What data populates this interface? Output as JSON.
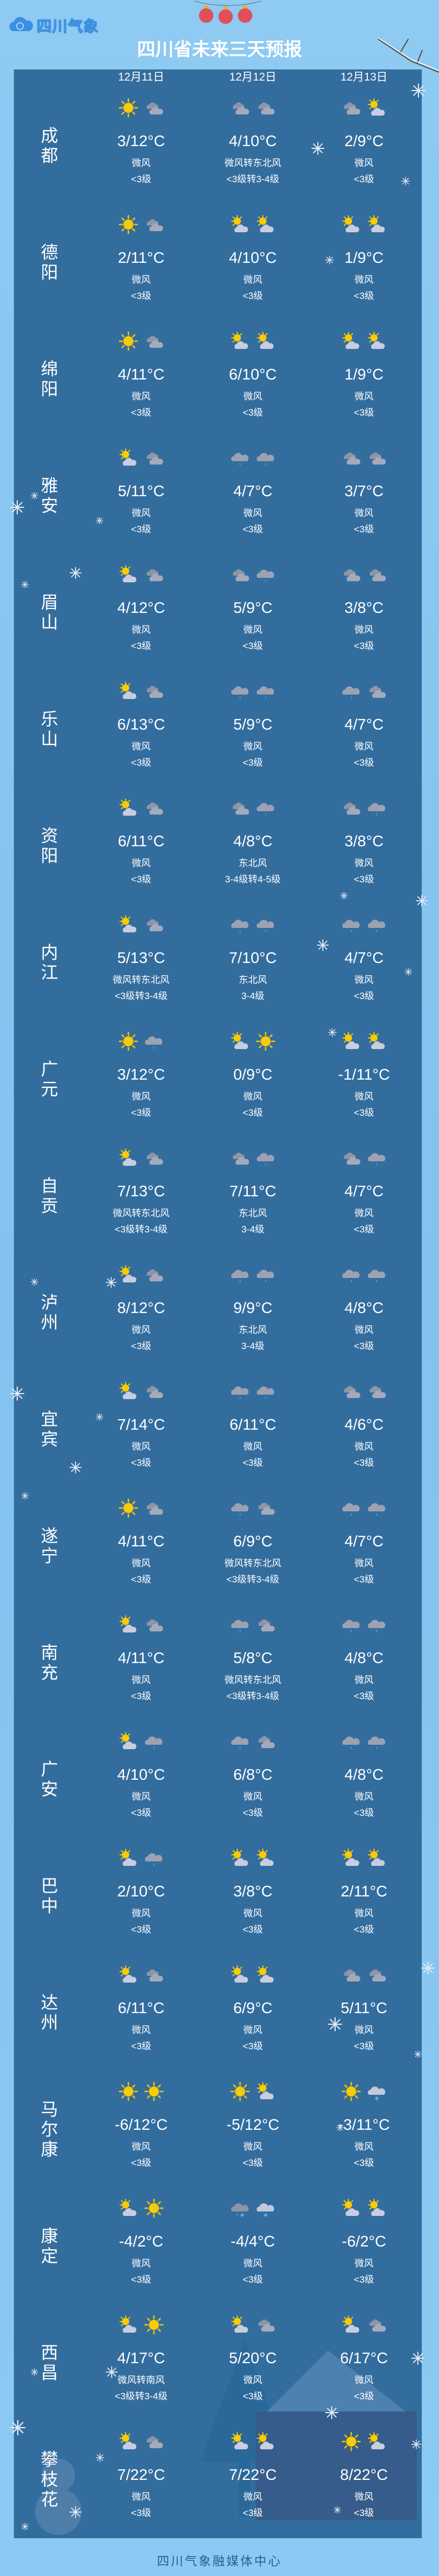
{
  "header": {
    "logo_text": "四川气象",
    "title": "四川省未来三天预报"
  },
  "dates": [
    "12月11日",
    "12月12日",
    "12月13日"
  ],
  "colors": {
    "background": "#86c3ee",
    "panel": "#336d9e",
    "text": "#ffffff",
    "footer": "#2b5f92",
    "sun": "#f5c400",
    "cloud": "#9da3b3",
    "rain_drop": "#3aa8f0"
  },
  "cities": [
    {
      "name": "成都",
      "days": [
        {
          "icons": [
            "sunny",
            "cloudy"
          ],
          "temp": "3/12°C",
          "wind": "微风",
          "level": "<3级"
        },
        {
          "icons": [
            "cloudy",
            "cloudy"
          ],
          "temp": "4/10°C",
          "wind": "微风转东北风",
          "level": "<3级转3-4级"
        },
        {
          "icons": [
            "cloudy",
            "partly-cloudy"
          ],
          "temp": "2/9°C",
          "wind": "微风",
          "level": "<3级"
        }
      ]
    },
    {
      "name": "德阳",
      "days": [
        {
          "icons": [
            "sunny",
            "cloudy"
          ],
          "temp": "2/11°C",
          "wind": "微风",
          "level": "<3级"
        },
        {
          "icons": [
            "partly-cloudy",
            "partly-cloudy"
          ],
          "temp": "4/10°C",
          "wind": "微风",
          "level": "<3级"
        },
        {
          "icons": [
            "partly-cloudy",
            "partly-cloudy"
          ],
          "temp": "1/9°C",
          "wind": "微风",
          "level": "<3级"
        }
      ]
    },
    {
      "name": "绵阳",
      "days": [
        {
          "icons": [
            "sunny",
            "cloudy"
          ],
          "temp": "4/11°C",
          "wind": "微风",
          "level": "<3级"
        },
        {
          "icons": [
            "partly-cloudy",
            "partly-cloudy"
          ],
          "temp": "6/10°C",
          "wind": "微风",
          "level": "<3级"
        },
        {
          "icons": [
            "partly-cloudy",
            "partly-cloudy"
          ],
          "temp": "1/9°C",
          "wind": "微风",
          "level": "<3级"
        }
      ]
    },
    {
      "name": "雅安",
      "days": [
        {
          "icons": [
            "partly-cloudy",
            "cloudy"
          ],
          "temp": "5/11°C",
          "wind": "微风",
          "level": "<3级"
        },
        {
          "icons": [
            "light-rain",
            "light-rain"
          ],
          "temp": "4/7°C",
          "wind": "微风",
          "level": "<3级"
        },
        {
          "icons": [
            "cloudy",
            "cloudy"
          ],
          "temp": "3/7°C",
          "wind": "微风",
          "level": "<3级"
        }
      ]
    },
    {
      "name": "眉山",
      "days": [
        {
          "icons": [
            "partly-cloudy",
            "cloudy"
          ],
          "temp": "4/12°C",
          "wind": "微风",
          "level": "<3级"
        },
        {
          "icons": [
            "cloudy",
            "light-rain"
          ],
          "temp": "5/9°C",
          "wind": "微风",
          "level": "<3级"
        },
        {
          "icons": [
            "cloudy",
            "cloudy"
          ],
          "temp": "3/8°C",
          "wind": "微风",
          "level": "<3级"
        }
      ]
    },
    {
      "name": "乐山",
      "days": [
        {
          "icons": [
            "partly-cloudy",
            "cloudy"
          ],
          "temp": "6/13°C",
          "wind": "微风",
          "level": "<3级"
        },
        {
          "icons": [
            "light-rain",
            "light-rain"
          ],
          "temp": "5/9°C",
          "wind": "微风",
          "level": "<3级"
        },
        {
          "icons": [
            "light-rain",
            "cloudy"
          ],
          "temp": "4/7°C",
          "wind": "微风",
          "level": "<3级"
        }
      ]
    },
    {
      "name": "资阳",
      "days": [
        {
          "icons": [
            "partly-cloudy",
            "cloudy"
          ],
          "temp": "6/11°C",
          "wind": "微风",
          "level": "<3级"
        },
        {
          "icons": [
            "cloudy",
            "light-rain"
          ],
          "temp": "4/8°C",
          "wind": "东北风",
          "level": "3-4级转4-5级"
        },
        {
          "icons": [
            "cloudy",
            "light-rain"
          ],
          "temp": "3/8°C",
          "wind": "微风",
          "level": "<3级"
        }
      ]
    },
    {
      "name": "内江",
      "days": [
        {
          "icons": [
            "partly-cloudy",
            "cloudy"
          ],
          "temp": "5/13°C",
          "wind": "微风转东北风",
          "level": "<3级转3-4级"
        },
        {
          "icons": [
            "light-rain",
            "light-rain"
          ],
          "temp": "7/10°C",
          "wind": "东北风",
          "level": "3-4级"
        },
        {
          "icons": [
            "light-rain",
            "light-rain"
          ],
          "temp": "4/7°C",
          "wind": "微风",
          "level": "<3级"
        }
      ]
    },
    {
      "name": "广元",
      "days": [
        {
          "icons": [
            "sunny",
            "light-rain"
          ],
          "temp": "3/12°C",
          "wind": "微风",
          "level": "<3级"
        },
        {
          "icons": [
            "partly-cloudy",
            "sunny"
          ],
          "temp": "0/9°C",
          "wind": "微风",
          "level": "<3级"
        },
        {
          "icons": [
            "partly-cloudy",
            "partly-cloudy"
          ],
          "temp": "-1/11°C",
          "wind": "微风",
          "level": "<3级"
        }
      ]
    },
    {
      "name": "自贡",
      "days": [
        {
          "icons": [
            "partly-cloudy",
            "cloudy"
          ],
          "temp": "7/13°C",
          "wind": "微风转东北风",
          "level": "<3级转3-4级"
        },
        {
          "icons": [
            "cloudy",
            "light-rain"
          ],
          "temp": "7/11°C",
          "wind": "东北风",
          "level": "3-4级"
        },
        {
          "icons": [
            "cloudy",
            "light-rain"
          ],
          "temp": "4/7°C",
          "wind": "微风",
          "level": "<3级"
        }
      ]
    },
    {
      "name": "泸州",
      "days": [
        {
          "icons": [
            "partly-cloudy",
            "cloudy"
          ],
          "temp": "8/12°C",
          "wind": "微风",
          "level": "<3级"
        },
        {
          "icons": [
            "light-rain",
            "light-rain"
          ],
          "temp": "9/9°C",
          "wind": "东北风",
          "level": "3-4级"
        },
        {
          "icons": [
            "light-rain",
            "light-rain"
          ],
          "temp": "4/8°C",
          "wind": "微风",
          "level": "<3级"
        }
      ]
    },
    {
      "name": "宜宾",
      "days": [
        {
          "icons": [
            "partly-cloudy",
            "cloudy"
          ],
          "temp": "7/14°C",
          "wind": "微风",
          "level": "<3级"
        },
        {
          "icons": [
            "light-rain",
            "light-rain"
          ],
          "temp": "6/11°C",
          "wind": "微风",
          "level": "<3级"
        },
        {
          "icons": [
            "cloudy",
            "cloudy"
          ],
          "temp": "4/6°C",
          "wind": "微风",
          "level": "<3级"
        }
      ]
    },
    {
      "name": "遂宁",
      "days": [
        {
          "icons": [
            "sunny",
            "cloudy"
          ],
          "temp": "4/11°C",
          "wind": "微风",
          "level": "<3级"
        },
        {
          "icons": [
            "light-rain",
            "cloudy"
          ],
          "temp": "6/9°C",
          "wind": "微风转东北风",
          "level": "<3级转3-4级"
        },
        {
          "icons": [
            "light-rain",
            "light-rain"
          ],
          "temp": "4/7°C",
          "wind": "微风",
          "level": "<3级"
        }
      ]
    },
    {
      "name": "南充",
      "days": [
        {
          "icons": [
            "partly-cloudy",
            "cloudy"
          ],
          "temp": "4/11°C",
          "wind": "微风",
          "level": "<3级"
        },
        {
          "icons": [
            "light-rain",
            "cloudy"
          ],
          "temp": "5/8°C",
          "wind": "微风转东北风",
          "level": "<3级转3-4级"
        },
        {
          "icons": [
            "light-rain",
            "light-rain"
          ],
          "temp": "4/8°C",
          "wind": "微风",
          "level": "<3级"
        }
      ]
    },
    {
      "name": "广安",
      "days": [
        {
          "icons": [
            "partly-cloudy",
            "light-rain"
          ],
          "temp": "4/10°C",
          "wind": "微风",
          "level": "<3级"
        },
        {
          "icons": [
            "light-rain",
            "cloudy"
          ],
          "temp": "6/8°C",
          "wind": "微风",
          "level": "<3级"
        },
        {
          "icons": [
            "light-rain",
            "light-rain"
          ],
          "temp": "4/8°C",
          "wind": "微风",
          "level": "<3级"
        }
      ]
    },
    {
      "name": "巴中",
      "days": [
        {
          "icons": [
            "partly-cloudy",
            "light-rain"
          ],
          "temp": "2/10°C",
          "wind": "微风",
          "level": "<3级"
        },
        {
          "icons": [
            "partly-cloudy",
            "partly-cloudy"
          ],
          "temp": "3/8°C",
          "wind": "微风",
          "level": "<3级"
        },
        {
          "icons": [
            "partly-cloudy",
            "partly-cloudy"
          ],
          "temp": "2/11°C",
          "wind": "微风",
          "level": "<3级"
        }
      ]
    },
    {
      "name": "达州",
      "days": [
        {
          "icons": [
            "partly-cloudy",
            "cloudy"
          ],
          "temp": "6/11°C",
          "wind": "微风",
          "level": "<3级"
        },
        {
          "icons": [
            "partly-cloudy",
            "partly-cloudy"
          ],
          "temp": "6/9°C",
          "wind": "微风",
          "level": "<3级"
        },
        {
          "icons": [
            "cloudy",
            "cloudy"
          ],
          "temp": "5/11°C",
          "wind": "微风",
          "level": "<3级"
        }
      ]
    },
    {
      "name": "马尔康",
      "days": [
        {
          "icons": [
            "sunny",
            "sunny"
          ],
          "temp": "-6/12°C",
          "wind": "微风",
          "level": "<3级"
        },
        {
          "icons": [
            "sunny",
            "partly-cloudy"
          ],
          "temp": "-5/12°C",
          "wind": "微风",
          "level": "<3级"
        },
        {
          "icons": [
            "sunny",
            "light-snow"
          ],
          "temp": "-3/11°C",
          "wind": "微风",
          "level": "<3级"
        }
      ]
    },
    {
      "name": "康定",
      "days": [
        {
          "icons": [
            "partly-cloudy",
            "sunny"
          ],
          "temp": "-4/2°C",
          "wind": "微风",
          "level": "<3级"
        },
        {
          "icons": [
            "sleet",
            "light-snow"
          ],
          "temp": "-4/4°C",
          "wind": "微风",
          "level": "<3级"
        },
        {
          "icons": [
            "partly-cloudy",
            "partly-cloudy"
          ],
          "temp": "-6/2°C",
          "wind": "微风",
          "level": "<3级"
        }
      ]
    },
    {
      "name": "西昌",
      "days": [
        {
          "icons": [
            "partly-cloudy",
            "sunny"
          ],
          "temp": "4/17°C",
          "wind": "微风转南风",
          "level": "<3级转3-4级"
        },
        {
          "icons": [
            "partly-cloudy",
            "cloudy"
          ],
          "temp": "5/20°C",
          "wind": "微风",
          "level": "<3级"
        },
        {
          "icons": [
            "partly-cloudy",
            "cloudy"
          ],
          "temp": "6/17°C",
          "wind": "微风",
          "level": "<3级"
        }
      ]
    },
    {
      "name": "攀枝花",
      "days": [
        {
          "icons": [
            "partly-cloudy",
            "cloudy"
          ],
          "temp": "7/22°C",
          "wind": "微风",
          "level": "<3级"
        },
        {
          "icons": [
            "partly-cloudy",
            "partly-cloudy"
          ],
          "temp": "7/22°C",
          "wind": "微风",
          "level": "<3级"
        },
        {
          "icons": [
            "sunny",
            "partly-cloudy"
          ],
          "temp": "8/22°C",
          "wind": "微风",
          "level": "<3级"
        }
      ]
    }
  ],
  "footer": "四川气象融媒体中心"
}
